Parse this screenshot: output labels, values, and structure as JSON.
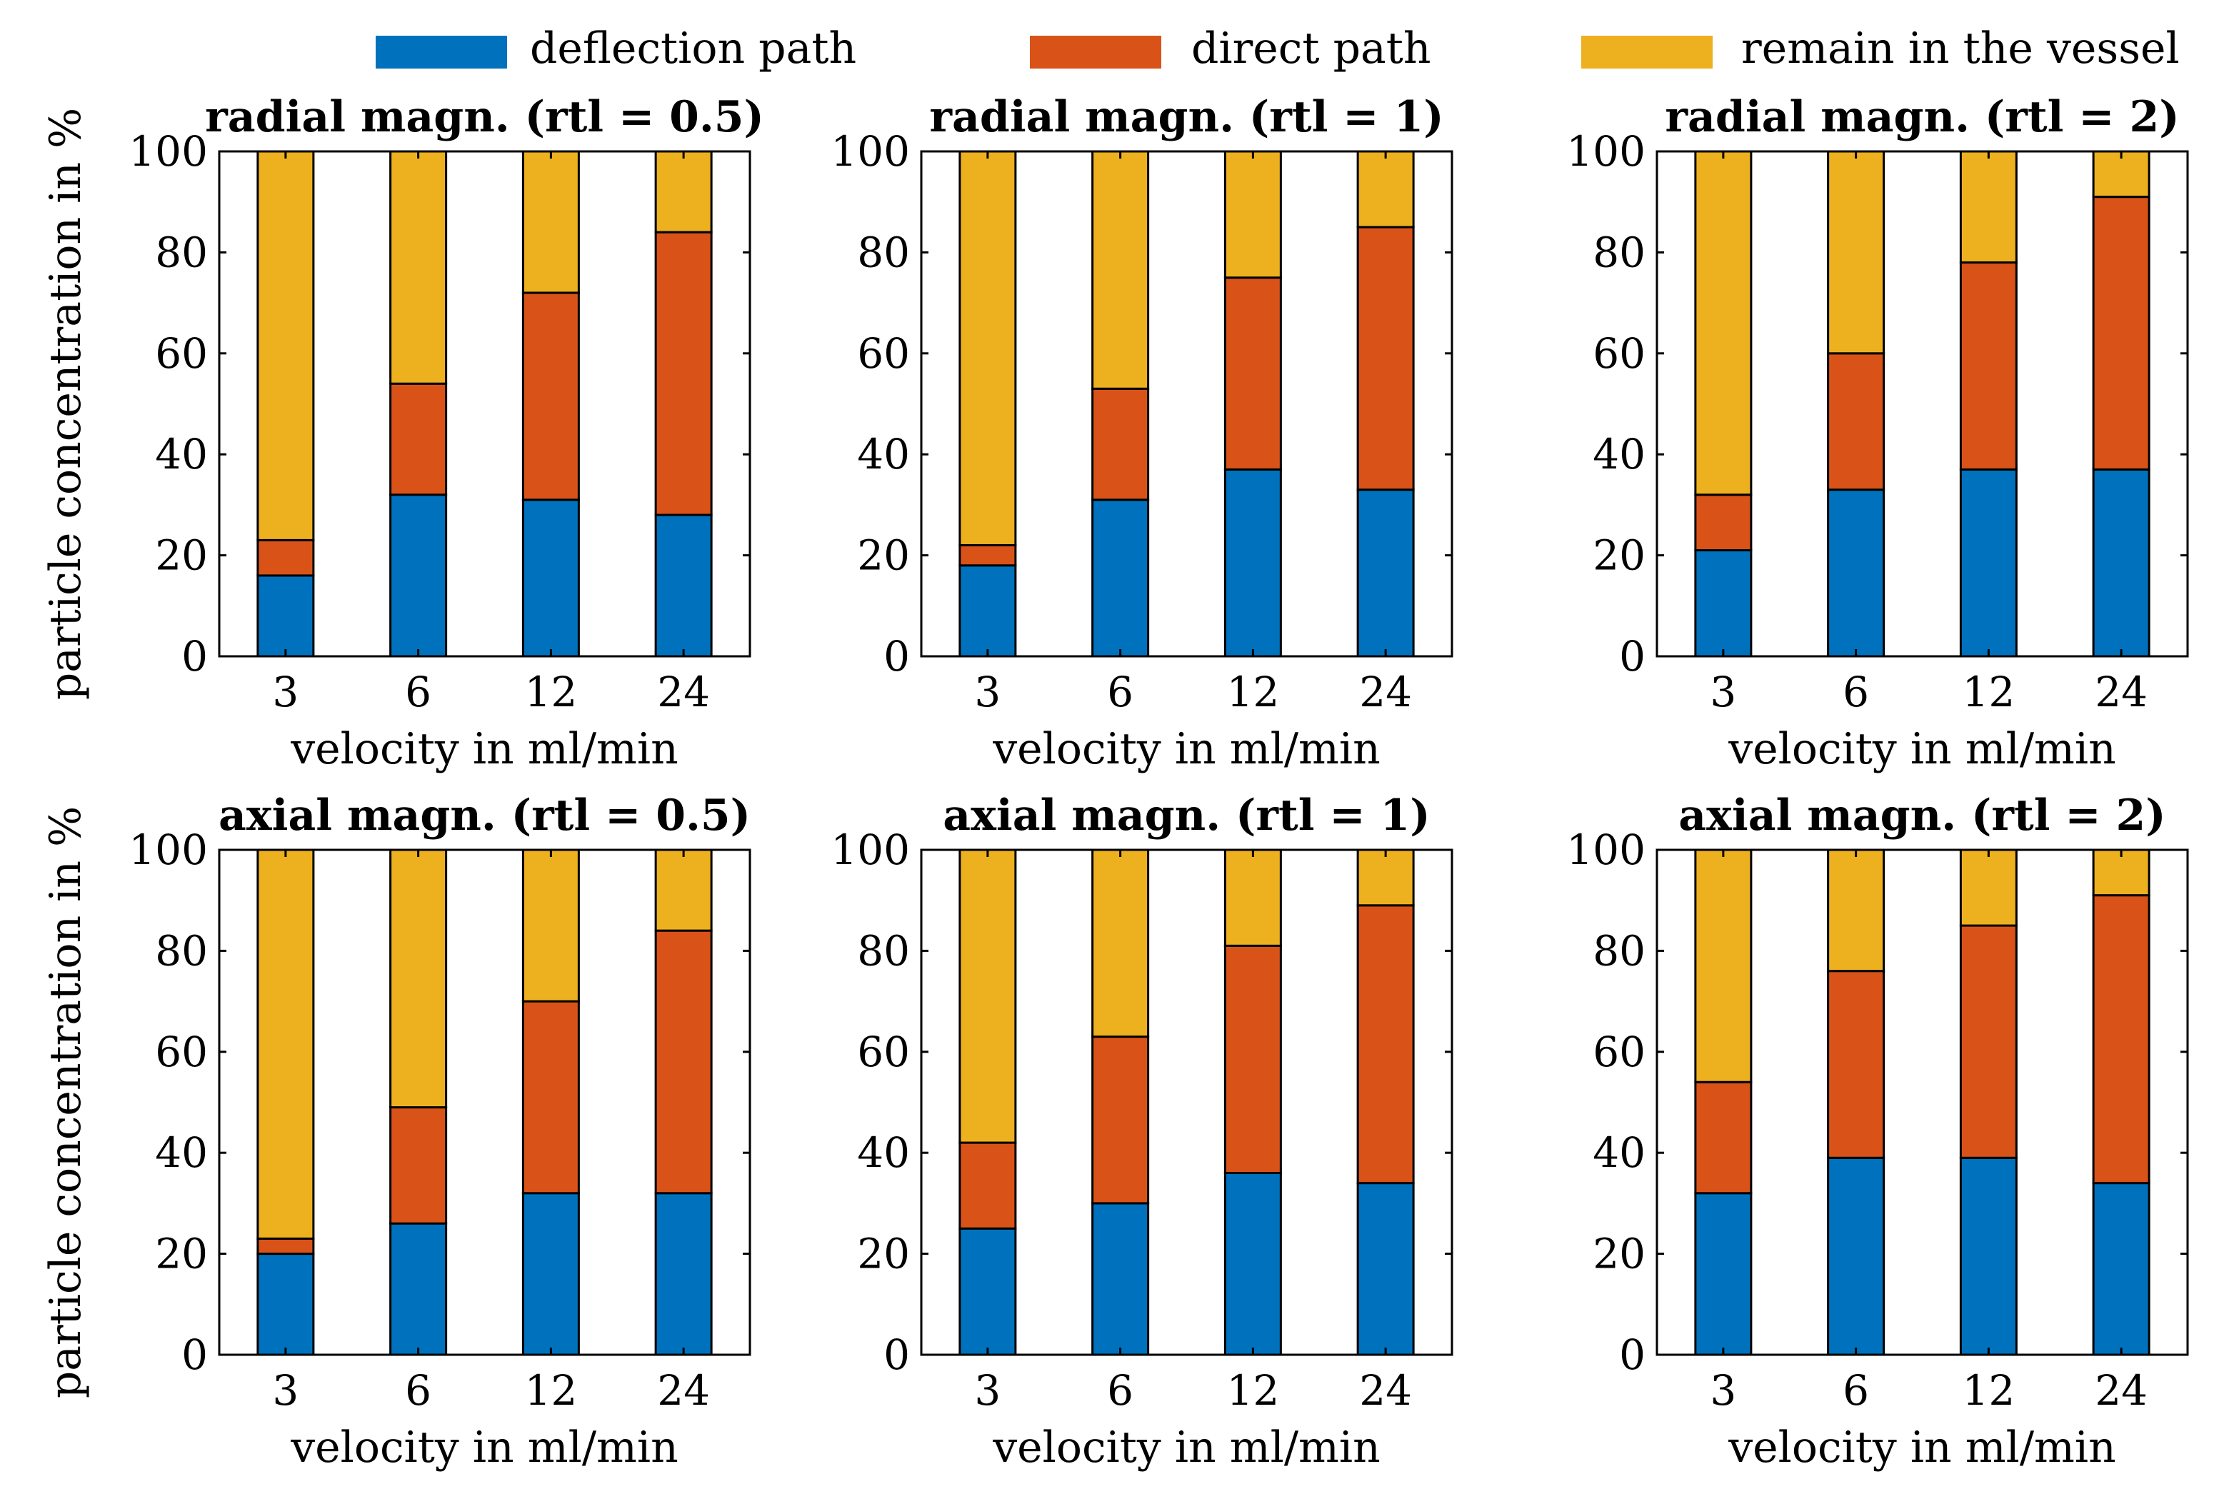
{
  "legend": {
    "items": [
      {
        "label": "deflection path",
        "color": "#0072BD"
      },
      {
        "label": "direct path",
        "color": "#D95319"
      },
      {
        "label": "remain in the vessel",
        "color": "#EDB120"
      }
    ]
  },
  "shared_axes": {
    "ylabel": "particle concentration in %",
    "xlabel": "velocity in ml/min",
    "ylim": [
      0,
      100
    ],
    "yticks": [
      "0",
      "20",
      "40",
      "60",
      "80",
      "100"
    ],
    "categories": [
      "3",
      "6",
      "12",
      "24"
    ]
  },
  "chart_data": [
    {
      "type": "bar",
      "stacked": true,
      "title": "radial magn. (rtl = 0.5)",
      "xlabel": "velocity in ml/min",
      "ylabel": "particle concentration in %",
      "categories": [
        "3",
        "6",
        "12",
        "24"
      ],
      "ylim": [
        0,
        100
      ],
      "series": [
        {
          "name": "deflection path",
          "values": [
            16,
            32,
            31,
            28
          ]
        },
        {
          "name": "direct path",
          "values": [
            7,
            22,
            41,
            56
          ]
        },
        {
          "name": "remain in the vessel",
          "values": [
            77,
            46,
            28,
            16
          ]
        }
      ]
    },
    {
      "type": "bar",
      "stacked": true,
      "title": "radial magn. (rtl = 1)",
      "xlabel": "velocity in ml/min",
      "ylabel": "",
      "categories": [
        "3",
        "6",
        "12",
        "24"
      ],
      "ylim": [
        0,
        100
      ],
      "series": [
        {
          "name": "deflection path",
          "values": [
            18,
            31,
            37,
            33
          ]
        },
        {
          "name": "direct path",
          "values": [
            4,
            22,
            38,
            52
          ]
        },
        {
          "name": "remain in the vessel",
          "values": [
            78,
            47,
            25,
            15
          ]
        }
      ]
    },
    {
      "type": "bar",
      "stacked": true,
      "title": "radial magn. (rtl = 2)",
      "xlabel": "velocity in ml/min",
      "ylabel": "",
      "categories": [
        "3",
        "6",
        "12",
        "24"
      ],
      "ylim": [
        0,
        100
      ],
      "series": [
        {
          "name": "deflection path",
          "values": [
            21,
            33,
            37,
            37
          ]
        },
        {
          "name": "direct path",
          "values": [
            11,
            27,
            41,
            54
          ]
        },
        {
          "name": "remain in the vessel",
          "values": [
            68,
            40,
            22,
            9
          ]
        }
      ]
    },
    {
      "type": "bar",
      "stacked": true,
      "title": "axial magn. (rtl = 0.5)",
      "xlabel": "velocity in ml/min",
      "ylabel": "particle concentration in %",
      "categories": [
        "3",
        "6",
        "12",
        "24"
      ],
      "ylim": [
        0,
        100
      ],
      "series": [
        {
          "name": "deflection path",
          "values": [
            20,
            26,
            32,
            32
          ]
        },
        {
          "name": "direct path",
          "values": [
            3,
            23,
            38,
            52
          ]
        },
        {
          "name": "remain in the vessel",
          "values": [
            77,
            51,
            30,
            16
          ]
        }
      ]
    },
    {
      "type": "bar",
      "stacked": true,
      "title": "axial magn. (rtl = 1)",
      "xlabel": "velocity in ml/min",
      "ylabel": "",
      "categories": [
        "3",
        "6",
        "12",
        "24"
      ],
      "ylim": [
        0,
        100
      ],
      "series": [
        {
          "name": "deflection path",
          "values": [
            25,
            30,
            36,
            34
          ]
        },
        {
          "name": "direct path",
          "values": [
            17,
            33,
            45,
            55
          ]
        },
        {
          "name": "remain in the vessel",
          "values": [
            58,
            37,
            19,
            11
          ]
        }
      ]
    },
    {
      "type": "bar",
      "stacked": true,
      "title": "axial magn. (rtl = 2)",
      "xlabel": "velocity in ml/min",
      "ylabel": "",
      "categories": [
        "3",
        "6",
        "12",
        "24"
      ],
      "ylim": [
        0,
        100
      ],
      "series": [
        {
          "name": "deflection path",
          "values": [
            32,
            39,
            39,
            34
          ]
        },
        {
          "name": "direct path",
          "values": [
            22,
            37,
            46,
            57
          ]
        },
        {
          "name": "remain in the vessel",
          "values": [
            46,
            24,
            15,
            9
          ]
        }
      ]
    }
  ]
}
